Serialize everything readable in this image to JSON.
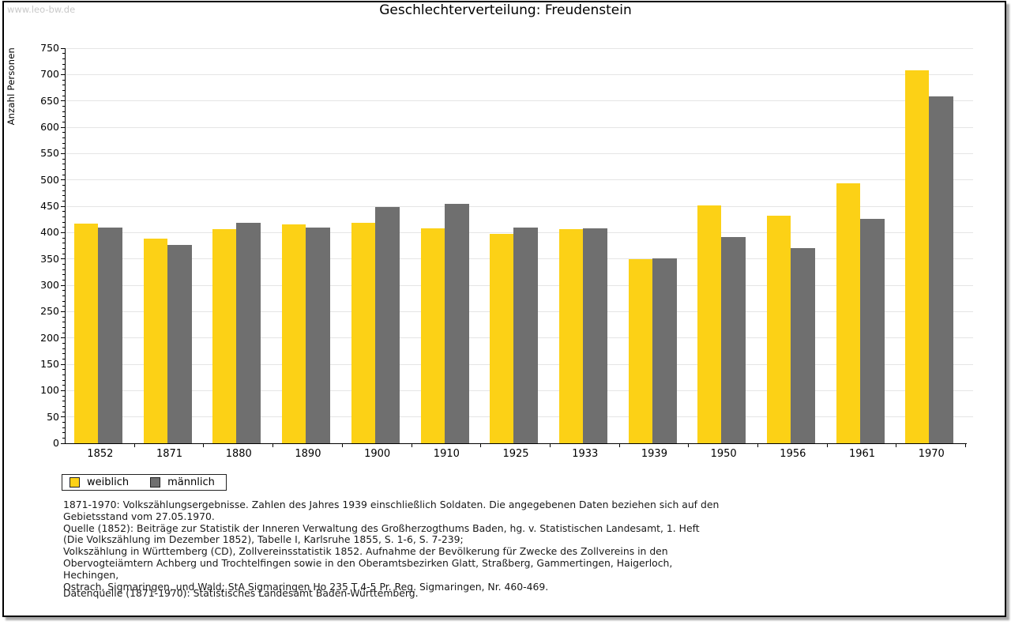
{
  "watermark": "www.leo-bw.de",
  "title": "Geschlechterverteilung: Freudenstein",
  "chart_data": {
    "type": "bar",
    "title": "Geschlechterverteilung: Freudenstein",
    "xlabel": "",
    "ylabel": "Anzahl Personen",
    "ylim": [
      0,
      750
    ],
    "y_major_tick_step": 50,
    "y_minor_tick_step": 10,
    "grid": true,
    "legend_position": "bottom-left",
    "categories": [
      "1852",
      "1871",
      "1880",
      "1890",
      "1900",
      "1910",
      "1925",
      "1933",
      "1939",
      "1950",
      "1956",
      "1961",
      "1970"
    ],
    "series": [
      {
        "name": "weiblich",
        "color": "#fcd116",
        "values": [
          417,
          388,
          406,
          415,
          418,
          408,
          398,
          406,
          350,
          451,
          432,
          494,
          708
        ]
      },
      {
        "name": "männlich",
        "color": "#6f6f6f",
        "values": [
          410,
          376,
          418,
          409,
          448,
          454,
          410,
          408,
          351,
          391,
          371,
          426,
          659
        ]
      }
    ]
  },
  "legend": {
    "items": [
      {
        "label": "weiblich",
        "color": "#fcd116"
      },
      {
        "label": "männlich",
        "color": "#6f6f6f"
      }
    ]
  },
  "footer": {
    "lines": [
      "1871-1970: Volkszählungsergebnisse. Zahlen des Jahres 1939 einschließlich Soldaten. Die angegebenen Daten beziehen sich auf den",
      "Gebietsstand vom 27.05.1970.",
      "Quelle (1852): Beiträge zur Statistik der Inneren Verwaltung des Großherzogthums Baden, hg. v. Statistischen Landesamt, 1. Heft",
      "(Die Volkszählung im Dezember 1852), Tabelle I, Karlsruhe 1855, S. 1-6, S. 7-239;",
      "Volkszählung in Württemberg (CD), Zollvereinsstatistik 1852. Aufnahme der Bevölkerung für Zwecke des Zollvereins in den",
      "Obervogteiämtern Achberg und Trochtelfingen sowie in den Oberamtsbezirken Glatt, Straßberg, Gammertingen, Haigerloch, Hechingen,",
      "Ostrach, Sigmaringen, und Wald; StA Sigmaringen Ho 235 T 4-5 Pr. Reg. Sigmaringen, Nr. 460-469."
    ],
    "datasource": "Datenquelle (1871-1970): Statistisches Landesamt Baden-Württemberg."
  }
}
